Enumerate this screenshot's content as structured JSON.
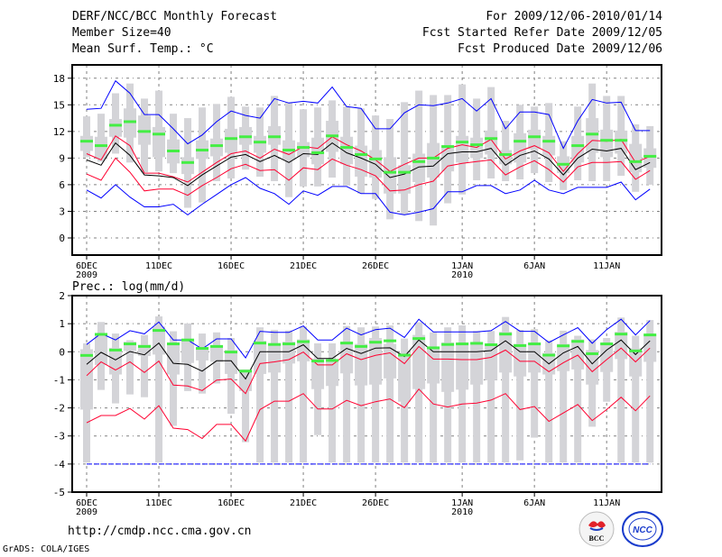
{
  "header": {
    "title": "DERF/NCC/BCC Monthly Forecast",
    "member_size": "Member Size=40",
    "variable1": "Mean Surf. Temp.: °C",
    "period": "For 2009/12/06-2010/01/14",
    "started": "Fcst Started Refer Date 2009/12/05",
    "produced": "Fcst Produced Date 2009/12/06"
  },
  "variable2": "Prec.: log(mm/d)",
  "footer": {
    "url": "http://cmdp.ncc.cma.gov.cn",
    "credit": "GrADS: COLA/IGES",
    "logo_bcc": "BCC",
    "logo_ncc": "NCC"
  },
  "colors": {
    "outer": "#0000ff",
    "inner": "#ff0030",
    "median": "#000000",
    "mean": "#44ee44",
    "box": "#d4d4d8",
    "grid": "#808080"
  },
  "x_ticks": [
    {
      "day": 0,
      "label": "6DEC",
      "year": "2009"
    },
    {
      "day": 5,
      "label": "11DEC",
      "year": ""
    },
    {
      "day": 10,
      "label": "16DEC",
      "year": ""
    },
    {
      "day": 15,
      "label": "21DEC",
      "year": ""
    },
    {
      "day": 20,
      "label": "26DEC",
      "year": ""
    },
    {
      "day": 26,
      "label": "1JAN",
      "year": "2010"
    },
    {
      "day": 31,
      "label": "6JAN",
      "year": ""
    },
    {
      "day": 36,
      "label": "11JAN",
      "year": ""
    }
  ],
  "chart_data": [
    {
      "type": "box",
      "title": "Mean Surf. Temp.: °C",
      "xlim": [
        -1,
        39.8
      ],
      "ylim": [
        -1.93,
        19.5
      ],
      "yticks": [
        0,
        3,
        6,
        9,
        12,
        15,
        18
      ],
      "grid": true,
      "box_max": [
        13.7,
        14.0,
        16.3,
        17.4,
        15.7,
        16.6,
        14.0,
        13.5,
        14.7,
        15.1,
        15.9,
        14.8,
        14.7,
        16.0,
        15.3,
        14.5,
        14.7,
        15.5,
        14.8,
        14.6,
        13.8,
        13.4,
        15.3,
        16.6,
        16.1,
        16.1,
        17.3,
        15.7,
        17.0,
        13.2,
        15.0,
        14.8,
        15.2,
        10.9,
        14.8,
        17.4,
        16.0,
        16.0,
        12.8,
        12.6
      ],
      "box_min": [
        9.1,
        8.6,
        9.5,
        8.5,
        7.4,
        7.5,
        7.3,
        3.4,
        4.0,
        6.4,
        6.7,
        7.7,
        6.9,
        6.4,
        4.6,
        5.8,
        5.8,
        6.8,
        5.9,
        5.0,
        4.4,
        2.1,
        2.6,
        1.9,
        1.4,
        3.9,
        4.9,
        6.5,
        6.7,
        6.4,
        6.6,
        7.3,
        6.3,
        5.4,
        6.5,
        6.4,
        6.4,
        7.0,
        5.2,
        6.0
      ],
      "box_q3": [
        11.5,
        11.4,
        13.4,
        14.6,
        13.8,
        12.5,
        11.1,
        9.1,
        11.0,
        11.2,
        12.3,
        12.5,
        11.5,
        12.6,
        11.0,
        10.8,
        11.3,
        13.2,
        11.4,
        10.4,
        9.9,
        9.1,
        8.2,
        9.5,
        10.7,
        10.4,
        11.5,
        11.3,
        12.1,
        9.9,
        11.8,
        12.2,
        11.5,
        9.2,
        11.5,
        13.5,
        12.2,
        12.1,
        10.6,
        10.1
      ],
      "box_q1": [
        9.8,
        9.0,
        11.4,
        11.3,
        10.5,
        9.1,
        8.4,
        7.2,
        8.9,
        9.2,
        9.6,
        10.5,
        9.6,
        10.5,
        8.8,
        9.1,
        8.3,
        9.7,
        8.3,
        6.9,
        6.8,
        5.0,
        5.0,
        6.3,
        6.8,
        7.5,
        8.5,
        9.0,
        9.4,
        8.3,
        8.5,
        10.0,
        9.3,
        7.3,
        8.5,
        9.6,
        9.1,
        9.5,
        7.4,
        7.9
      ],
      "series": [
        {
          "name": "outer-upper",
          "color": "#0000ff",
          "values": [
            14.5,
            14.6,
            17.7,
            16.3,
            13.9,
            13.9,
            12.3,
            10.6,
            11.6,
            13.1,
            14.3,
            13.8,
            13.5,
            15.7,
            15.2,
            15.4,
            15.2,
            17.0,
            14.8,
            14.6,
            12.3,
            12.3,
            14.1,
            15.0,
            14.9,
            15.2,
            15.7,
            14.3,
            15.7,
            12.3,
            14.2,
            14.2,
            13.9,
            10.1,
            13.2,
            15.6,
            15.2,
            15.3,
            12.1,
            12.1
          ]
        },
        {
          "name": "outer-lower",
          "color": "#0000ff",
          "values": [
            5.4,
            4.5,
            6.0,
            4.6,
            3.5,
            3.5,
            3.8,
            2.6,
            3.8,
            4.9,
            6.0,
            6.8,
            5.6,
            5.0,
            3.8,
            5.3,
            4.8,
            5.8,
            5.8,
            5.0,
            5.0,
            2.9,
            2.6,
            2.9,
            3.3,
            5.2,
            5.2,
            5.9,
            5.9,
            5.0,
            5.4,
            6.5,
            5.4,
            5.0,
            5.7,
            5.7,
            5.7,
            6.3,
            4.3,
            5.5
          ]
        },
        {
          "name": "inner-upper",
          "color": "#ff0030",
          "values": [
            9.5,
            8.8,
            11.5,
            10.4,
            7.3,
            7.3,
            6.9,
            6.3,
            7.4,
            8.5,
            9.5,
            9.8,
            9.0,
            10.0,
            9.4,
            10.3,
            10.1,
            11.4,
            10.5,
            9.8,
            8.8,
            7.5,
            8.3,
            9.0,
            9.0,
            10.1,
            10.5,
            10.2,
            11.1,
            8.9,
            9.8,
            10.4,
            9.6,
            7.5,
            9.5,
            11.0,
            10.9,
            11.1,
            8.5,
            9.2
          ]
        },
        {
          "name": "inner-lower",
          "color": "#ff0030",
          "values": [
            7.2,
            6.5,
            9.0,
            7.4,
            5.3,
            5.5,
            5.5,
            4.8,
            5.9,
            6.8,
            7.8,
            8.3,
            7.6,
            7.7,
            6.5,
            7.9,
            7.7,
            8.9,
            8.2,
            7.7,
            7.0,
            5.3,
            5.4,
            6.0,
            6.4,
            8.1,
            8.4,
            8.6,
            8.8,
            7.1,
            8.0,
            8.7,
            7.7,
            6.3,
            8.0,
            8.5,
            8.5,
            8.6,
            6.6,
            7.6
          ]
        },
        {
          "name": "median",
          "color": "#000000",
          "values": [
            8.8,
            8.2,
            10.7,
            9.3,
            7.1,
            7.0,
            6.8,
            5.9,
            7.1,
            8.1,
            9.1,
            9.4,
            8.6,
            9.3,
            8.5,
            9.5,
            9.4,
            10.7,
            9.6,
            9.0,
            8.3,
            6.8,
            7.2,
            8.0,
            8.1,
            9.5,
            9.7,
            9.7,
            10.1,
            8.2,
            9.3,
            9.8,
            8.9,
            7.1,
            9.0,
            10.0,
            9.8,
            10.1,
            7.7,
            8.5
          ]
        },
        {
          "name": "mean",
          "color": "#44ee44",
          "values": [
            10.9,
            10.4,
            12.7,
            13.1,
            12.0,
            11.7,
            9.8,
            8.5,
            9.9,
            10.4,
            11.2,
            11.4,
            10.8,
            11.4,
            9.9,
            10.2,
            9.6,
            11.5,
            10.2,
            9.4,
            8.9,
            7.4,
            7.4,
            8.6,
            9.0,
            10.3,
            10.8,
            10.5,
            11.2,
            9.4,
            10.9,
            11.4,
            10.9,
            8.3,
            10.4,
            11.7,
            11.0,
            11.0,
            8.6,
            9.2
          ]
        }
      ]
    },
    {
      "type": "box",
      "title": "Prec.: log(mm/d)",
      "xlim": [
        -1,
        39.8
      ],
      "ylim": [
        -5,
        2
      ],
      "yticks": [
        -5,
        -4,
        -3,
        -2,
        -1,
        0,
        1,
        2
      ],
      "grid": true,
      "box_max": [
        0.3,
        1.06,
        0.65,
        0.41,
        0.6,
        1.26,
        0.73,
        1.01,
        0.65,
        0.69,
        0.49,
        -0.63,
        0.87,
        0.78,
        0.76,
        0.9,
        0.3,
        0.3,
        0.92,
        0.87,
        0.9,
        0.94,
        0.47,
        1.05,
        0.69,
        0.87,
        0.94,
        0.74,
        0.74,
        1.24,
        0.78,
        0.81,
        0.41,
        0.75,
        0.57,
        0.44,
        0.49,
        1.22,
        0.57,
        1.13
      ],
      "box_min": [
        -3.95,
        -1.36,
        -1.84,
        -1.52,
        -1.62,
        -3.95,
        -2.64,
        -1.4,
        -1.49,
        -1.13,
        -2.21,
        -3.22,
        -3.95,
        -3.95,
        -3.95,
        -3.95,
        -2.97,
        -3.95,
        -3.95,
        -3.95,
        -3.95,
        -3.95,
        -3.95,
        -3.95,
        -3.95,
        -3.95,
        -3.95,
        -3.95,
        -3.95,
        -3.95,
        -3.87,
        -3.06,
        -3.95,
        -3.95,
        -3.95,
        -2.67,
        -1.78,
        -3.95,
        -3.95,
        -3.95
      ],
      "box_q3": [
        0.09,
        0.67,
        0.14,
        0.36,
        0.25,
        0.9,
        0.33,
        0.44,
        0.17,
        0.22,
        0.06,
        -0.63,
        0.39,
        0.3,
        0.36,
        0.44,
        -0.24,
        -0.34,
        0.36,
        0.28,
        0.49,
        0.28,
        -0.04,
        0.6,
        0.17,
        0.33,
        0.33,
        0.33,
        0.28,
        0.71,
        0.28,
        0.33,
        -0.04,
        0.28,
        0.44,
        0.06,
        0.33,
        0.71,
        0.12,
        0.6
      ],
      "box_q1": [
        -2.06,
        -0.47,
        -0.81,
        0.03,
        -0.15,
        -0.1,
        -0.81,
        -0.4,
        -0.31,
        -0.36,
        -0.79,
        -1.4,
        -0.79,
        -0.74,
        -0.42,
        -0.34,
        -1.33,
        -1.22,
        -0.77,
        -1.2,
        -1.17,
        -0.95,
        -1.78,
        -1.33,
        -1.13,
        -1.43,
        -1.35,
        -1.17,
        -1.01,
        -0.74,
        -0.88,
        -0.74,
        -0.81,
        -0.69,
        -0.63,
        -1.17,
        -0.72,
        -0.26,
        -0.88,
        -0.36
      ],
      "series": [
        {
          "name": "outer-upper",
          "color": "#0000ff",
          "values": [
            0.26,
            0.65,
            0.42,
            0.75,
            0.64,
            1.06,
            0.42,
            0.42,
            0.1,
            0.46,
            0.46,
            -0.22,
            0.73,
            0.69,
            0.69,
            0.92,
            0.42,
            0.42,
            0.84,
            0.6,
            0.79,
            0.84,
            0.51,
            1.16,
            0.71,
            0.71,
            0.71,
            0.71,
            0.75,
            1.08,
            0.73,
            0.73,
            0.33,
            0.6,
            0.86,
            0.3,
            0.79,
            1.16,
            0.6,
            1.11
          ]
        },
        {
          "name": "outer-lower",
          "color": "#0000ff",
          "values": [
            -4,
            -4,
            -4,
            -4,
            -4,
            -4,
            -4,
            -4,
            -4,
            -4,
            -4,
            -4,
            -4,
            -4,
            -4,
            -4,
            -4,
            -4,
            -4,
            -4,
            -4,
            -4,
            -4,
            -4,
            -4,
            -4,
            -4,
            -4,
            -4,
            -4,
            -4,
            -4,
            -4,
            -4,
            -4,
            -4,
            -4,
            -4,
            -4,
            -4
          ]
        },
        {
          "name": "inner-upper",
          "color": "#ff0030",
          "values": [
            -0.85,
            -0.36,
            -0.65,
            -0.36,
            -0.74,
            -0.33,
            -1.19,
            -1.22,
            -1.38,
            -1.01,
            -0.97,
            -1.49,
            -0.42,
            -0.36,
            -0.28,
            -0.01,
            -0.47,
            -0.47,
            -0.07,
            -0.28,
            -0.13,
            -0.04,
            -0.42,
            0.19,
            -0.26,
            -0.26,
            -0.28,
            -0.28,
            -0.2,
            0.06,
            -0.34,
            -0.34,
            -0.71,
            -0.39,
            -0.12,
            -0.71,
            -0.28,
            0.13,
            -0.36,
            0.13
          ]
        },
        {
          "name": "inner-lower",
          "color": "#ff0030",
          "values": [
            -2.53,
            -2.27,
            -2.27,
            -2.02,
            -2.4,
            -1.92,
            -2.72,
            -2.77,
            -3.09,
            -2.59,
            -2.59,
            -3.18,
            -2.06,
            -1.76,
            -1.76,
            -1.49,
            -2.04,
            -2.04,
            -1.73,
            -1.92,
            -1.78,
            -1.68,
            -1.99,
            -1.33,
            -1.86,
            -1.97,
            -1.86,
            -1.83,
            -1.72,
            -1.49,
            -2.06,
            -1.95,
            -2.48,
            -2.18,
            -1.88,
            -2.45,
            -2.06,
            -1.62,
            -2.1,
            -1.57
          ]
        },
        {
          "name": "median",
          "color": "#000000",
          "values": [
            -0.45,
            -0.02,
            -0.29,
            0.01,
            -0.11,
            0.31,
            -0.41,
            -0.45,
            -0.69,
            -0.32,
            -0.32,
            -0.97,
            0,
            0,
            0,
            0.25,
            -0.24,
            -0.24,
            0.12,
            -0.06,
            0.13,
            0.14,
            -0.17,
            0.42,
            0,
            0,
            0,
            0,
            0.04,
            0.39,
            0,
            0,
            -0.43,
            -0.04,
            0.19,
            -0.43,
            0.06,
            0.42,
            -0.1,
            0.39
          ]
        },
        {
          "name": "mean",
          "color": "#44ee44",
          "values": [
            -0.13,
            0.62,
            0.06,
            0.28,
            0.19,
            0.76,
            0.28,
            0.42,
            0.12,
            0.19,
            -0.01,
            -0.69,
            0.31,
            0.26,
            0.28,
            0.36,
            -0.33,
            -0.31,
            0.31,
            0.19,
            0.34,
            0.39,
            -0.12,
            0.47,
            0.14,
            0.26,
            0.28,
            0.3,
            0.25,
            0.63,
            0.22,
            0.28,
            -0.12,
            0.21,
            0.37,
            -0.07,
            0.28,
            0.63,
            0.03,
            0.6
          ]
        }
      ]
    }
  ]
}
